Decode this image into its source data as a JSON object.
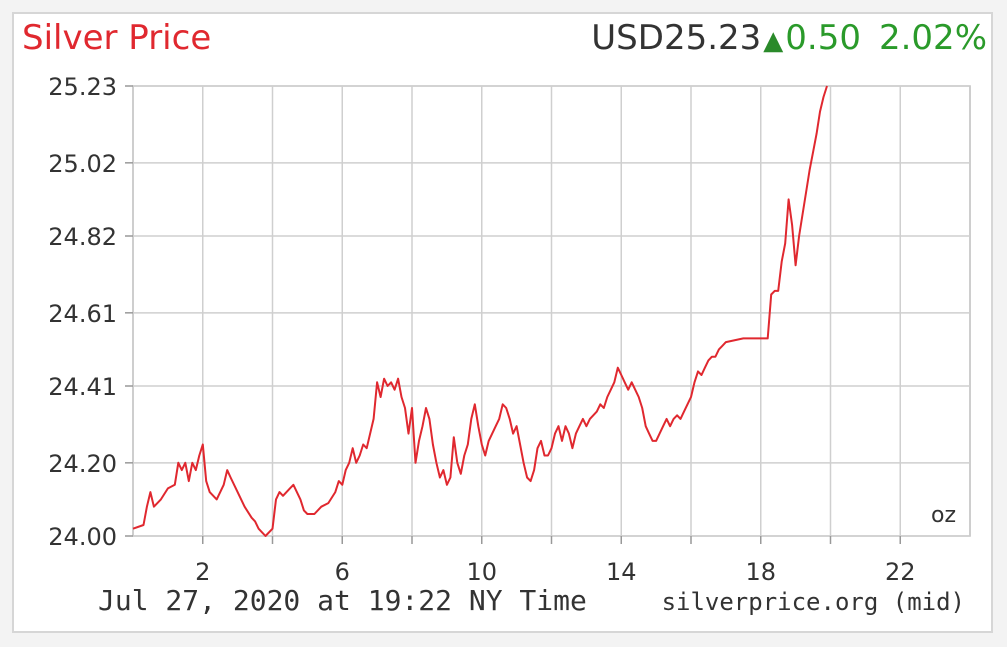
{
  "header": {
    "title": "Silver Price",
    "price": "USD25.23",
    "change": "0.50",
    "change_pct": "2.02%",
    "arrow_icon": "up-triangle-icon"
  },
  "footer": {
    "timestamp": "Jul 27, 2020 at 19:22 NY Time",
    "source": "silverprice.org (mid)"
  },
  "colors": {
    "title": "#e0282f",
    "line": "#e0282f",
    "up": "#2a9a2a",
    "grid": "#cfcfcf",
    "text": "#333333"
  },
  "chart_data": {
    "type": "line",
    "unit": "oz",
    "x_ticks": [
      "2",
      "6",
      "10",
      "14",
      "18",
      "22"
    ],
    "x_tick_values": [
      2,
      6,
      10,
      14,
      18,
      22
    ],
    "xlim": [
      0,
      24
    ],
    "y_ticks": [
      "24.00",
      "24.20",
      "24.41",
      "24.61",
      "24.82",
      "25.02",
      "25.23"
    ],
    "ylim": [
      24.0,
      25.23
    ],
    "grid": true,
    "series": [
      {
        "values": [
          [
            0.0,
            24.02
          ],
          [
            0.3,
            24.03
          ],
          [
            0.4,
            24.08
          ],
          [
            0.5,
            24.12
          ],
          [
            0.6,
            24.08
          ],
          [
            0.8,
            24.1
          ],
          [
            1.0,
            24.13
          ],
          [
            1.2,
            24.14
          ],
          [
            1.3,
            24.2
          ],
          [
            1.4,
            24.18
          ],
          [
            1.5,
            24.2
          ],
          [
            1.6,
            24.15
          ],
          [
            1.7,
            24.2
          ],
          [
            1.8,
            24.18
          ],
          [
            1.9,
            24.22
          ],
          [
            2.0,
            24.25
          ],
          [
            2.1,
            24.15
          ],
          [
            2.2,
            24.12
          ],
          [
            2.4,
            24.1
          ],
          [
            2.6,
            24.14
          ],
          [
            2.7,
            24.18
          ],
          [
            2.8,
            24.16
          ],
          [
            3.0,
            24.12
          ],
          [
            3.2,
            24.08
          ],
          [
            3.4,
            24.05
          ],
          [
            3.5,
            24.04
          ],
          [
            3.6,
            24.02
          ],
          [
            3.7,
            24.01
          ],
          [
            3.8,
            24.0
          ],
          [
            4.0,
            24.02
          ],
          [
            4.1,
            24.1
          ],
          [
            4.2,
            24.12
          ],
          [
            4.3,
            24.11
          ],
          [
            4.5,
            24.13
          ],
          [
            4.6,
            24.14
          ],
          [
            4.8,
            24.1
          ],
          [
            4.9,
            24.07
          ],
          [
            5.0,
            24.06
          ],
          [
            5.2,
            24.06
          ],
          [
            5.4,
            24.08
          ],
          [
            5.6,
            24.09
          ],
          [
            5.8,
            24.12
          ],
          [
            5.9,
            24.15
          ],
          [
            6.0,
            24.14
          ],
          [
            6.1,
            24.18
          ],
          [
            6.2,
            24.2
          ],
          [
            6.3,
            24.24
          ],
          [
            6.4,
            24.2
          ],
          [
            6.5,
            24.22
          ],
          [
            6.6,
            24.25
          ],
          [
            6.7,
            24.24
          ],
          [
            6.9,
            24.32
          ],
          [
            7.0,
            24.42
          ],
          [
            7.1,
            24.38
          ],
          [
            7.2,
            24.43
          ],
          [
            7.3,
            24.41
          ],
          [
            7.4,
            24.42
          ],
          [
            7.5,
            24.4
          ],
          [
            7.6,
            24.43
          ],
          [
            7.7,
            24.38
          ],
          [
            7.8,
            24.35
          ],
          [
            7.9,
            24.28
          ],
          [
            8.0,
            24.35
          ],
          [
            8.1,
            24.2
          ],
          [
            8.2,
            24.26
          ],
          [
            8.3,
            24.3
          ],
          [
            8.4,
            24.35
          ],
          [
            8.5,
            24.32
          ],
          [
            8.6,
            24.25
          ],
          [
            8.7,
            24.2
          ],
          [
            8.8,
            24.16
          ],
          [
            8.9,
            24.18
          ],
          [
            9.0,
            24.14
          ],
          [
            9.1,
            24.16
          ],
          [
            9.2,
            24.27
          ],
          [
            9.3,
            24.2
          ],
          [
            9.4,
            24.17
          ],
          [
            9.5,
            24.22
          ],
          [
            9.6,
            24.25
          ],
          [
            9.7,
            24.32
          ],
          [
            9.8,
            24.36
          ],
          [
            9.9,
            24.3
          ],
          [
            10.0,
            24.25
          ],
          [
            10.1,
            24.22
          ],
          [
            10.2,
            24.26
          ],
          [
            10.3,
            24.28
          ],
          [
            10.4,
            24.3
          ],
          [
            10.5,
            24.32
          ],
          [
            10.6,
            24.36
          ],
          [
            10.7,
            24.35
          ],
          [
            10.8,
            24.32
          ],
          [
            10.9,
            24.28
          ],
          [
            11.0,
            24.3
          ],
          [
            11.1,
            24.25
          ],
          [
            11.2,
            24.2
          ],
          [
            11.3,
            24.16
          ],
          [
            11.4,
            24.15
          ],
          [
            11.5,
            24.18
          ],
          [
            11.6,
            24.24
          ],
          [
            11.7,
            24.26
          ],
          [
            11.8,
            24.22
          ],
          [
            11.9,
            24.22
          ],
          [
            12.0,
            24.24
          ],
          [
            12.1,
            24.28
          ],
          [
            12.2,
            24.3
          ],
          [
            12.3,
            24.26
          ],
          [
            12.4,
            24.3
          ],
          [
            12.5,
            24.28
          ],
          [
            12.6,
            24.24
          ],
          [
            12.7,
            24.28
          ],
          [
            12.8,
            24.3
          ],
          [
            12.9,
            24.32
          ],
          [
            13.0,
            24.3
          ],
          [
            13.1,
            24.32
          ],
          [
            13.2,
            24.33
          ],
          [
            13.3,
            24.34
          ],
          [
            13.4,
            24.36
          ],
          [
            13.5,
            24.35
          ],
          [
            13.6,
            24.38
          ],
          [
            13.7,
            24.4
          ],
          [
            13.8,
            24.42
          ],
          [
            13.9,
            24.46
          ],
          [
            14.0,
            24.44
          ],
          [
            14.1,
            24.42
          ],
          [
            14.2,
            24.4
          ],
          [
            14.3,
            24.42
          ],
          [
            14.4,
            24.4
          ],
          [
            14.5,
            24.38
          ],
          [
            14.6,
            24.35
          ],
          [
            14.7,
            24.3
          ],
          [
            14.8,
            24.28
          ],
          [
            14.9,
            24.26
          ],
          [
            15.0,
            24.26
          ],
          [
            15.1,
            24.28
          ],
          [
            15.2,
            24.3
          ],
          [
            15.3,
            24.32
          ],
          [
            15.4,
            24.3
          ],
          [
            15.5,
            24.32
          ],
          [
            15.6,
            24.33
          ],
          [
            15.7,
            24.32
          ],
          [
            15.8,
            24.34
          ],
          [
            15.9,
            24.36
          ],
          [
            16.0,
            24.38
          ],
          [
            16.1,
            24.42
          ],
          [
            16.2,
            24.45
          ],
          [
            16.3,
            24.44
          ],
          [
            16.4,
            24.46
          ],
          [
            16.5,
            24.48
          ],
          [
            16.6,
            24.49
          ],
          [
            16.7,
            24.49
          ],
          [
            16.8,
            24.51
          ],
          [
            16.9,
            24.52
          ],
          [
            17.0,
            24.53
          ],
          [
            17.5,
            24.54
          ],
          [
            18.0,
            24.54
          ],
          [
            18.2,
            24.54
          ],
          [
            18.3,
            24.66
          ],
          [
            18.4,
            24.67
          ],
          [
            18.5,
            24.67
          ],
          [
            18.6,
            24.75
          ],
          [
            18.7,
            24.8
          ],
          [
            18.8,
            24.92
          ],
          [
            18.9,
            24.85
          ],
          [
            19.0,
            24.74
          ],
          [
            19.1,
            24.82
          ],
          [
            19.2,
            24.88
          ],
          [
            19.3,
            24.94
          ],
          [
            19.4,
            25.0
          ],
          [
            19.5,
            25.05
          ],
          [
            19.6,
            25.1
          ],
          [
            19.7,
            25.16
          ],
          [
            19.8,
            25.2
          ],
          [
            19.9,
            25.23
          ]
        ]
      }
    ]
  }
}
